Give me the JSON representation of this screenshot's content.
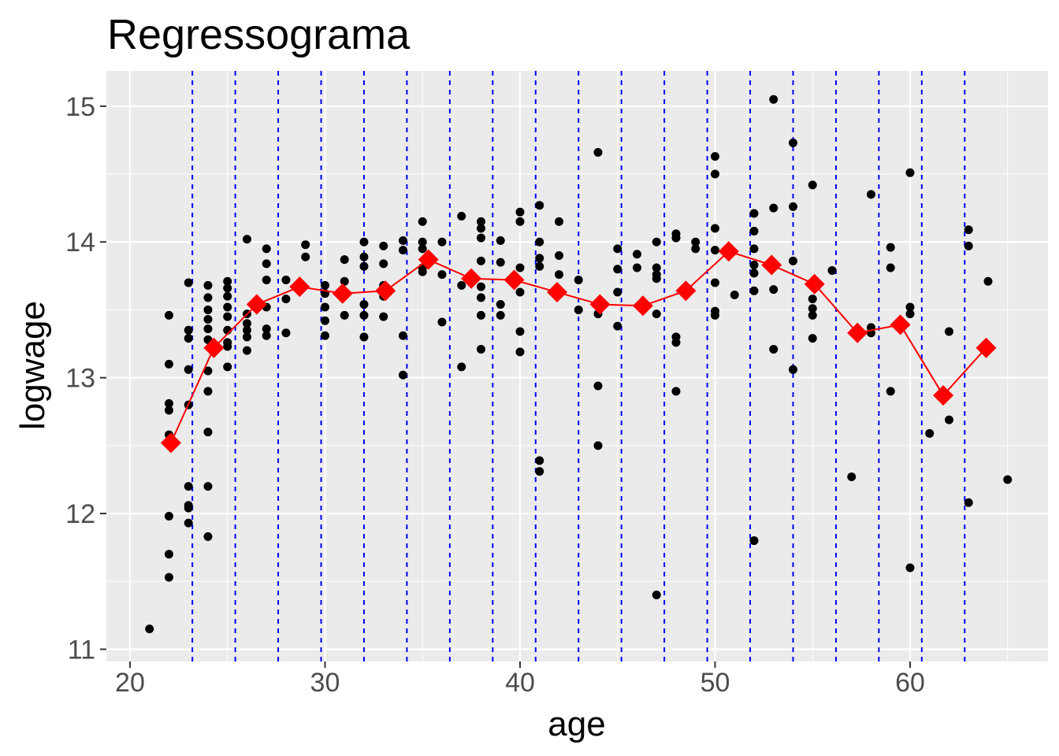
{
  "chart_data": {
    "type": "scatter",
    "title": "Regressograma",
    "x_label": "age",
    "y_label": "logwage",
    "xlim": [
      18.79,
      67.07
    ],
    "ylim": [
      10.91,
      15.26
    ],
    "xticks": [
      20,
      30,
      40,
      50,
      60
    ],
    "yticks": [
      11,
      12,
      13,
      14,
      15
    ],
    "grid": true,
    "point_color": "#000000",
    "line_color": "#ff0000",
    "break_color": "#0000ff",
    "points": [
      {
        "x": 21,
        "y": [
          11.15
        ]
      },
      {
        "x": 22,
        "y": [
          13.46,
          13.1,
          12.81,
          12.76,
          12.58,
          11.98,
          11.7,
          11.53
        ]
      },
      {
        "x": 23,
        "y": [
          13.7,
          13.35,
          13.29,
          13.06,
          12.8,
          12.2,
          12.06,
          12.04,
          11.93
        ]
      },
      {
        "x": 24,
        "y": [
          13.68,
          13.59,
          13.5,
          13.43,
          13.36,
          13.28,
          13.05,
          12.9,
          12.6,
          12.2,
          11.83
        ]
      },
      {
        "x": 25,
        "y": [
          13.71,
          13.66,
          13.6,
          13.52,
          13.45,
          13.35,
          13.26,
          13.23,
          13.08
        ]
      },
      {
        "x": 26,
        "y": [
          14.02,
          13.47,
          13.4,
          13.35,
          13.3,
          13.2
        ]
      },
      {
        "x": 27,
        "y": [
          13.95,
          13.84,
          13.72,
          13.52,
          13.36,
          13.31
        ]
      },
      {
        "x": 28,
        "y": [
          13.72,
          13.58,
          13.33
        ]
      },
      {
        "x": 29,
        "y": [
          13.98,
          13.89
        ]
      },
      {
        "x": 30,
        "y": [
          13.68,
          13.62,
          13.52,
          13.42,
          13.31
        ]
      },
      {
        "x": 31,
        "y": [
          13.87,
          13.71,
          13.61,
          13.46
        ]
      },
      {
        "x": 32,
        "y": [
          14.0,
          13.89,
          13.82,
          13.54,
          13.46,
          13.3
        ]
      },
      {
        "x": 33,
        "y": [
          13.97,
          13.84,
          13.68,
          13.6,
          13.45
        ]
      },
      {
        "x": 34,
        "y": [
          14.01,
          13.94,
          13.31,
          13.02
        ]
      },
      {
        "x": 35,
        "y": [
          14.15,
          14.0,
          13.95,
          13.81,
          13.78
        ]
      },
      {
        "x": 36,
        "y": [
          14.0,
          13.76,
          13.41
        ]
      },
      {
        "x": 37,
        "y": [
          14.19,
          13.68,
          13.08
        ]
      },
      {
        "x": 38,
        "y": [
          14.15,
          14.1,
          14.03,
          13.86,
          13.67,
          13.59,
          13.46,
          13.21
        ]
      },
      {
        "x": 39,
        "y": [
          14.01,
          13.85,
          13.54,
          13.46
        ]
      },
      {
        "x": 40,
        "y": [
          14.22,
          14.15,
          13.81,
          13.63,
          13.34,
          13.19
        ]
      },
      {
        "x": 41,
        "y": [
          14.27,
          14.0,
          13.88,
          13.82,
          12.39,
          12.31
        ]
      },
      {
        "x": 42,
        "y": [
          14.15,
          13.9,
          13.76
        ]
      },
      {
        "x": 43,
        "y": [
          13.72,
          13.5
        ]
      },
      {
        "x": 44,
        "y": [
          14.66,
          13.47,
          12.94,
          12.5
        ]
      },
      {
        "x": 45,
        "y": [
          13.95,
          13.8,
          13.63,
          13.38
        ]
      },
      {
        "x": 46,
        "y": [
          13.91,
          13.81
        ]
      },
      {
        "x": 47,
        "y": [
          14.0,
          13.81,
          13.76,
          13.73,
          13.47,
          11.4
        ]
      },
      {
        "x": 48,
        "y": [
          14.06,
          14.03,
          13.3,
          13.26,
          12.9
        ]
      },
      {
        "x": 49,
        "y": [
          14.0,
          13.95
        ]
      },
      {
        "x": 50,
        "y": [
          14.63,
          14.5,
          14.1,
          13.94,
          13.7,
          13.49,
          13.46
        ]
      },
      {
        "x": 51,
        "y": [
          13.61
        ]
      },
      {
        "x": 52,
        "y": [
          14.21,
          14.08,
          13.95,
          13.83,
          13.77,
          13.64,
          11.8
        ]
      },
      {
        "x": 53,
        "y": [
          15.05,
          14.25,
          13.65,
          13.21
        ]
      },
      {
        "x": 54,
        "y": [
          14.73,
          14.26,
          13.86,
          13.06
        ]
      },
      {
        "x": 55,
        "y": [
          14.42,
          13.58,
          13.51,
          13.46,
          13.29
        ]
      },
      {
        "x": 56,
        "y": [
          13.79
        ]
      },
      {
        "x": 57,
        "y": [
          12.27
        ]
      },
      {
        "x": 58,
        "y": [
          14.35,
          13.37,
          13.33
        ]
      },
      {
        "x": 59,
        "y": [
          13.96,
          13.81,
          12.9
        ]
      },
      {
        "x": 60,
        "y": [
          14.51,
          13.52,
          13.47,
          11.6
        ]
      },
      {
        "x": 61,
        "y": [
          12.59
        ]
      },
      {
        "x": 62,
        "y": [
          13.34,
          12.69
        ]
      },
      {
        "x": 63,
        "y": [
          14.09,
          13.97,
          12.08
        ]
      },
      {
        "x": 64,
        "y": [
          13.71
        ]
      },
      {
        "x": 65,
        "y": [
          12.25
        ]
      }
    ],
    "breaks": [
      23.2,
      25.4,
      27.6,
      29.8,
      32,
      34.2,
      36.4,
      38.6,
      40.8,
      43,
      45.2,
      47.4,
      49.6,
      51.8,
      54,
      56.2,
      58.4,
      60.6,
      62.8
    ],
    "regressogram": {
      "x": [
        22.1,
        24.3,
        26.5,
        28.7,
        30.9,
        33.1,
        35.3,
        37.5,
        39.7,
        41.9,
        44.1,
        46.3,
        48.5,
        50.7,
        52.9,
        55.1,
        57.3,
        59.5,
        61.7,
        63.9
      ],
      "y": [
        12.52,
        13.22,
        13.54,
        13.67,
        13.62,
        13.64,
        13.87,
        13.73,
        13.72,
        13.63,
        13.54,
        13.53,
        13.64,
        13.93,
        13.83,
        13.69,
        13.33,
        13.39,
        12.87,
        13.22
      ]
    }
  }
}
